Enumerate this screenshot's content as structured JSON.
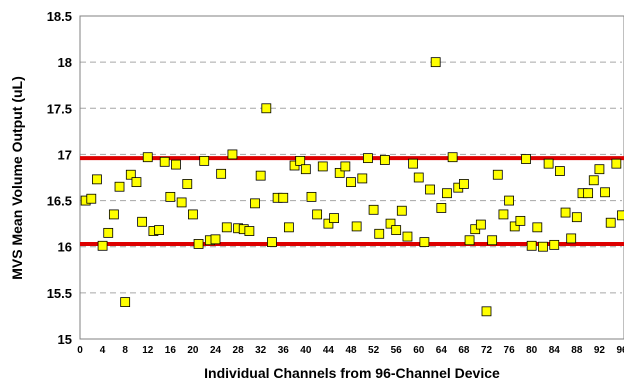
{
  "chart_data": {
    "type": "scatter",
    "title": "",
    "xlabel": "Individual Channels from 96-Channel Device",
    "ylabel": "MVS Mean Volume Output (uL)",
    "xlim": [
      0,
      96
    ],
    "ylim": [
      15,
      18.5
    ],
    "x_ticks": [
      0,
      4,
      8,
      12,
      16,
      20,
      24,
      28,
      32,
      36,
      40,
      44,
      48,
      52,
      56,
      60,
      64,
      68,
      72,
      76,
      80,
      84,
      88,
      92,
      96
    ],
    "y_ticks": [
      15,
      15.5,
      16,
      16.5,
      17,
      17.5,
      18,
      18.5
    ],
    "y_tick_labels": [
      "15",
      "15.5",
      "16",
      "16.5",
      "17",
      "17.5",
      "18",
      "18.5"
    ],
    "grid": "horizontal dashed",
    "reference_lines": [
      16.03,
      16.96
    ],
    "reference_line_color": "#dd0000",
    "marker_fill": "#ffff00",
    "marker_edge": "#000000",
    "series": [
      {
        "x": [
          1,
          2,
          3,
          4,
          5,
          6,
          7,
          8,
          9,
          10,
          11,
          12,
          13,
          14,
          15,
          16,
          17,
          18,
          19,
          20,
          21,
          22,
          23,
          24,
          25,
          26,
          27,
          28,
          29,
          30,
          31,
          32,
          33,
          34,
          35,
          36,
          37,
          38,
          39,
          40,
          41,
          42,
          43,
          44,
          45,
          46,
          47,
          48,
          49,
          50,
          51,
          52,
          53,
          54,
          55,
          56,
          57,
          58,
          59,
          60,
          61,
          62,
          63,
          64,
          65,
          66,
          67,
          68,
          69,
          70,
          71,
          72,
          73,
          74,
          75,
          76,
          77,
          78,
          79,
          80,
          81,
          82,
          83,
          84,
          85,
          86,
          87,
          88,
          89,
          90,
          91,
          92,
          93,
          94,
          95,
          96
        ],
        "y": [
          16.5,
          16.52,
          16.73,
          16.01,
          16.15,
          16.35,
          16.65,
          15.4,
          16.78,
          16.7,
          16.27,
          16.97,
          16.17,
          16.18,
          16.92,
          16.54,
          16.89,
          16.48,
          16.68,
          16.35,
          16.03,
          16.93,
          16.07,
          16.08,
          16.79,
          16.21,
          17.0,
          16.2,
          16.19,
          16.17,
          16.47,
          16.77,
          17.5,
          16.05,
          16.53,
          16.53,
          16.21,
          16.88,
          16.93,
          16.84,
          16.54,
          16.35,
          16.87,
          16.25,
          16.31,
          16.8,
          16.87,
          16.7,
          16.22,
          16.74,
          16.96,
          16.4,
          16.14,
          16.94,
          16.25,
          16.18,
          16.39,
          16.11,
          16.9,
          16.75,
          16.05,
          16.62,
          18.0,
          16.42,
          16.58,
          16.97,
          16.64,
          16.68,
          16.07,
          16.19,
          16.24,
          15.3,
          16.07,
          16.78,
          16.35,
          16.5,
          16.22,
          16.28,
          16.95,
          16.01,
          16.21,
          16.0,
          16.9,
          16.02,
          16.82,
          16.37,
          16.09,
          16.32,
          16.58,
          16.58,
          16.72,
          16.84,
          16.59,
          16.26,
          16.9,
          16.34
        ]
      }
    ]
  }
}
